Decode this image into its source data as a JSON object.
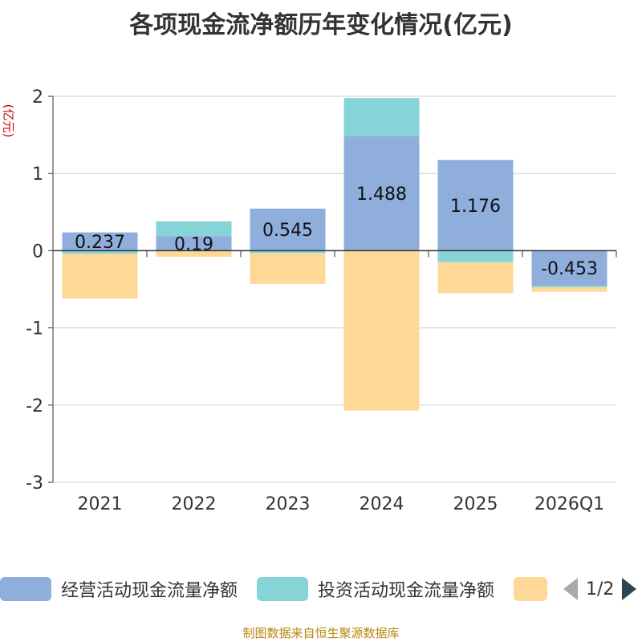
{
  "chart_data": {
    "type": "bar",
    "stacked": true,
    "title": "各项现金流净额历年变化情况(亿元)",
    "ylabel": "(亿元)",
    "ylim": [
      -3,
      2
    ],
    "yticks": [
      2,
      1,
      0,
      -1,
      -2,
      -3
    ],
    "categories": [
      "2021",
      "2022",
      "2023",
      "2024",
      "2025",
      "2026Q1"
    ],
    "series": [
      {
        "name": "经营活动现金流量净额",
        "color": "#8faedb",
        "values": [
          0.237,
          0.19,
          0.545,
          1.488,
          1.176,
          -0.453
        ]
      },
      {
        "name": "投资活动现金流量净额",
        "color": "#86d4d8",
        "values": [
          -0.04,
          0.19,
          -0.03,
          0.49,
          -0.15,
          -0.02
        ]
      },
      {
        "name": "",
        "color": "#fed897",
        "values": [
          -0.58,
          -0.08,
          -0.4,
          -2.07,
          -0.4,
          -0.06
        ]
      }
    ],
    "data_labels": [
      "0.237",
      "0.19",
      "0.545",
      "1.488",
      "1.176",
      "-0.453"
    ],
    "legend_position": "bottom"
  },
  "legend": {
    "page": "1/2"
  },
  "footer": "制图数据来自恒生聚源数据库"
}
